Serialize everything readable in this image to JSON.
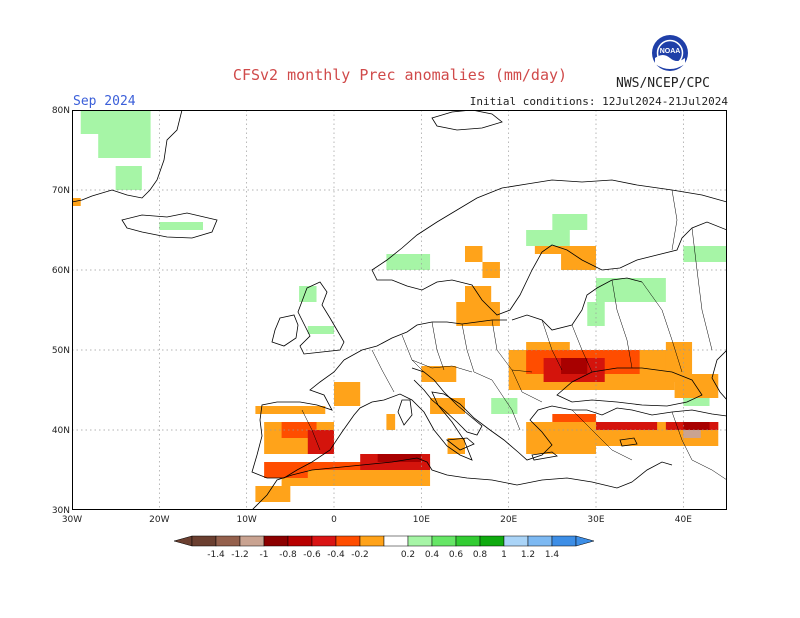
{
  "header": {
    "title": "CFSv2 monthly Prec anomalies (mm/day)",
    "month": "Sep 2024",
    "initial_conditions": "Initial conditions: 12Jul2024-21Jul2024",
    "agency": "NWS/NCEP/CPC",
    "logo_text": "NOAA"
  },
  "map": {
    "lat_labels": [
      "80N",
      "70N",
      "60N",
      "50N",
      "40N",
      "30N"
    ],
    "lon_labels": [
      "30W",
      "20W",
      "10W",
      "0",
      "10E",
      "20E",
      "30E",
      "40E"
    ],
    "lon_range": [
      -30,
      45
    ],
    "lat_range": [
      30,
      80
    ],
    "colors": {
      "coast": "#000000",
      "grid": "#9a9a9a",
      "neg_02_04": "#ffa31a",
      "neg_04_06": "#ff4d00",
      "neg_06_08": "#d4140c",
      "neg_08_10": "#a80000",
      "neg_12_14": "#c9a391",
      "pos_02_04": "#a6f5a6"
    },
    "anomaly_regions": [
      {
        "class": "pos_02_04",
        "lon": [
          -29,
          -21
        ],
        "lat": [
          77,
          80
        ]
      },
      {
        "class": "pos_02_04",
        "lon": [
          -27,
          -21
        ],
        "lat": [
          74,
          77
        ]
      },
      {
        "class": "pos_02_04",
        "lon": [
          -25,
          -22
        ],
        "lat": [
          70,
          73
        ]
      },
      {
        "class": "pos_02_04",
        "lon": [
          -20,
          -15
        ],
        "lat": [
          65,
          66
        ]
      },
      {
        "class": "pos_02_04",
        "lon": [
          6,
          11
        ],
        "lat": [
          60,
          62
        ]
      },
      {
        "class": "pos_02_04",
        "lon": [
          -4,
          -2
        ],
        "lat": [
          56,
          58
        ]
      },
      {
        "class": "pos_02_04",
        "lon": [
          -3,
          0
        ],
        "lat": [
          52,
          53
        ]
      },
      {
        "class": "pos_02_04",
        "lon": [
          25,
          29
        ],
        "lat": [
          65,
          67
        ]
      },
      {
        "class": "pos_02_04",
        "lon": [
          22,
          27
        ],
        "lat": [
          63,
          65
        ]
      },
      {
        "class": "pos_02_04",
        "lon": [
          30,
          38
        ],
        "lat": [
          56,
          59
        ]
      },
      {
        "class": "pos_02_04",
        "lon": [
          29,
          31
        ],
        "lat": [
          53,
          56
        ]
      },
      {
        "class": "pos_02_04",
        "lon": [
          40,
          45
        ],
        "lat": [
          61,
          63
        ]
      },
      {
        "class": "pos_02_04",
        "lon": [
          18,
          21
        ],
        "lat": [
          42,
          44
        ]
      },
      {
        "class": "pos_02_04",
        "lon": [
          40,
          43
        ],
        "lat": [
          43,
          44
        ]
      },
      {
        "class": "neg_02_04",
        "lon": [
          -30,
          -29
        ],
        "lat": [
          68,
          69
        ]
      },
      {
        "class": "neg_02_04",
        "lon": [
          15,
          17
        ],
        "lat": [
          61,
          63
        ]
      },
      {
        "class": "neg_02_04",
        "lon": [
          17,
          19
        ],
        "lat": [
          59,
          61
        ]
      },
      {
        "class": "neg_02_04",
        "lon": [
          23,
          30
        ],
        "lat": [
          62,
          63
        ]
      },
      {
        "class": "neg_02_04",
        "lon": [
          26,
          30
        ],
        "lat": [
          60,
          62
        ]
      },
      {
        "class": "neg_02_04",
        "lon": [
          15,
          18
        ],
        "lat": [
          56,
          58
        ]
      },
      {
        "class": "neg_02_04",
        "lon": [
          14,
          19
        ],
        "lat": [
          53,
          56
        ]
      },
      {
        "class": "neg_02_04",
        "lon": [
          22,
          27
        ],
        "lat": [
          49,
          51
        ]
      },
      {
        "class": "neg_02_04",
        "lon": [
          20,
          39
        ],
        "lat": [
          45,
          50
        ]
      },
      {
        "class": "neg_02_04",
        "lon": [
          10,
          14
        ],
        "lat": [
          46,
          48
        ]
      },
      {
        "class": "neg_02_04",
        "lon": [
          38,
          41
        ],
        "lat": [
          46,
          51
        ]
      },
      {
        "class": "neg_02_04",
        "lon": [
          39,
          44
        ],
        "lat": [
          44,
          47
        ]
      },
      {
        "class": "neg_02_04",
        "lon": [
          33,
          36
        ],
        "lat": [
          46,
          47
        ]
      },
      {
        "class": "neg_02_04",
        "lon": [
          11,
          15
        ],
        "lat": [
          42,
          44
        ]
      },
      {
        "class": "neg_02_04",
        "lon": [
          13,
          15
        ],
        "lat": [
          37,
          39
        ]
      },
      {
        "class": "neg_02_04",
        "lon": [
          6,
          7
        ],
        "lat": [
          40,
          42
        ]
      },
      {
        "class": "neg_02_04",
        "lon": [
          -9,
          -1
        ],
        "lat": [
          42,
          43
        ]
      },
      {
        "class": "neg_02_04",
        "lon": [
          0,
          3
        ],
        "lat": [
          43,
          46
        ]
      },
      {
        "class": "neg_02_04",
        "lon": [
          -8,
          0
        ],
        "lat": [
          37,
          41
        ]
      },
      {
        "class": "neg_02_04",
        "lon": [
          -6,
          0
        ],
        "lat": [
          33,
          36
        ]
      },
      {
        "class": "neg_02_04",
        "lon": [
          -9,
          -5
        ],
        "lat": [
          31,
          33
        ]
      },
      {
        "class": "neg_02_04",
        "lon": [
          -2,
          11
        ],
        "lat": [
          33,
          35
        ]
      },
      {
        "class": "neg_02_04",
        "lon": [
          22,
          30
        ],
        "lat": [
          37,
          41
        ]
      },
      {
        "class": "neg_02_04",
        "lon": [
          30,
          44
        ],
        "lat": [
          38,
          41
        ]
      },
      {
        "class": "neg_04_06",
        "lon": [
          -6,
          -2
        ],
        "lat": [
          39,
          41
        ]
      },
      {
        "class": "neg_04_06",
        "lon": [
          -3,
          11
        ],
        "lat": [
          35,
          36
        ]
      },
      {
        "class": "neg_04_06",
        "lon": [
          22,
          35
        ],
        "lat": [
          47,
          50
        ]
      },
      {
        "class": "neg_04_06",
        "lon": [
          -8,
          -3
        ],
        "lat": [
          34,
          36
        ]
      },
      {
        "class": "neg_04_06",
        "lon": [
          25,
          30
        ],
        "lat": [
          41,
          42
        ]
      },
      {
        "class": "neg_06_08",
        "lon": [
          -3,
          0
        ],
        "lat": [
          37,
          40
        ]
      },
      {
        "class": "neg_06_08",
        "lon": [
          24,
          31
        ],
        "lat": [
          46,
          49
        ]
      },
      {
        "class": "neg_06_08",
        "lon": [
          3,
          11
        ],
        "lat": [
          35,
          37
        ]
      },
      {
        "class": "neg_06_08",
        "lon": [
          30,
          37
        ],
        "lat": [
          40,
          41
        ]
      },
      {
        "class": "neg_06_08",
        "lon": [
          38,
          44
        ],
        "lat": [
          40,
          41
        ]
      },
      {
        "class": "neg_08_10",
        "lon": [
          26,
          29
        ],
        "lat": [
          47,
          49
        ]
      },
      {
        "class": "neg_08_10",
        "lon": [
          5,
          10
        ],
        "lat": [
          36,
          37
        ]
      },
      {
        "class": "neg_08_10",
        "lon": [
          40,
          43
        ],
        "lat": [
          40,
          41
        ]
      },
      {
        "class": "neg_12_14",
        "lon": [
          40,
          42
        ],
        "lat": [
          39,
          40
        ]
      }
    ]
  },
  "colorbar": {
    "labels": [
      "-1.4",
      "-1.2",
      "-1",
      "-0.8",
      "-0.6",
      "-0.4",
      "-0.2",
      "0.2",
      "0.4",
      "0.6",
      "0.8",
      "1",
      "1.2",
      "1.4"
    ],
    "bins": [
      "#6b3f30",
      "#94604c",
      "#c9a391",
      "#8c0000",
      "#b80000",
      "#d91414",
      "#ff4d00",
      "#ffa31a",
      "#ffffff",
      "#a6f5a6",
      "#66e666",
      "#33cc33",
      "#0faa0f",
      "#aad4f7",
      "#7db9f2",
      "#3d8ee6"
    ]
  }
}
